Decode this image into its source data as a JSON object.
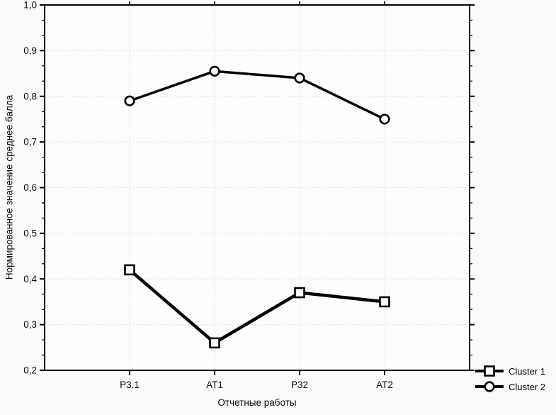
{
  "page": {
    "background": "#fbfbfb"
  },
  "chart_data": {
    "type": "line",
    "categories": [
      "Р3.1",
      "АТ1",
      "Р32",
      "АТ2"
    ],
    "series": [
      {
        "name": "Cluster 1",
        "marker": "square",
        "values": [
          0.42,
          0.26,
          0.37,
          0.35
        ]
      },
      {
        "name": "Cluster 2",
        "marker": "circle",
        "values": [
          0.79,
          0.855,
          0.84,
          0.75
        ]
      }
    ],
    "title": "",
    "xlabel": "Отчетные работы",
    "ylabel": "Нормированное значение среднее балла",
    "ylim": [
      0.2,
      1.0
    ],
    "y_ticks": [
      1.0,
      0.9,
      0.8,
      0.7,
      0.6,
      0.5,
      0.4,
      0.3,
      0.2
    ],
    "y_tick_labels": [
      "1,0",
      "0,9",
      "0,8",
      "0,7",
      "0,6",
      "0,5",
      "0,4",
      "0,3",
      "0,2"
    ],
    "y_minor_subdivisions": 3,
    "grid": true,
    "grid_style": "dotted",
    "legend_position": "bottom-right-outside",
    "colors": {
      "line": "#000000",
      "marker_fill": "#ffffff",
      "marker_stroke": "#000000",
      "grid": "#dedede",
      "frame": "#000000",
      "text": "#0a0a0a",
      "plot_bg": "#fdfdfd"
    }
  }
}
